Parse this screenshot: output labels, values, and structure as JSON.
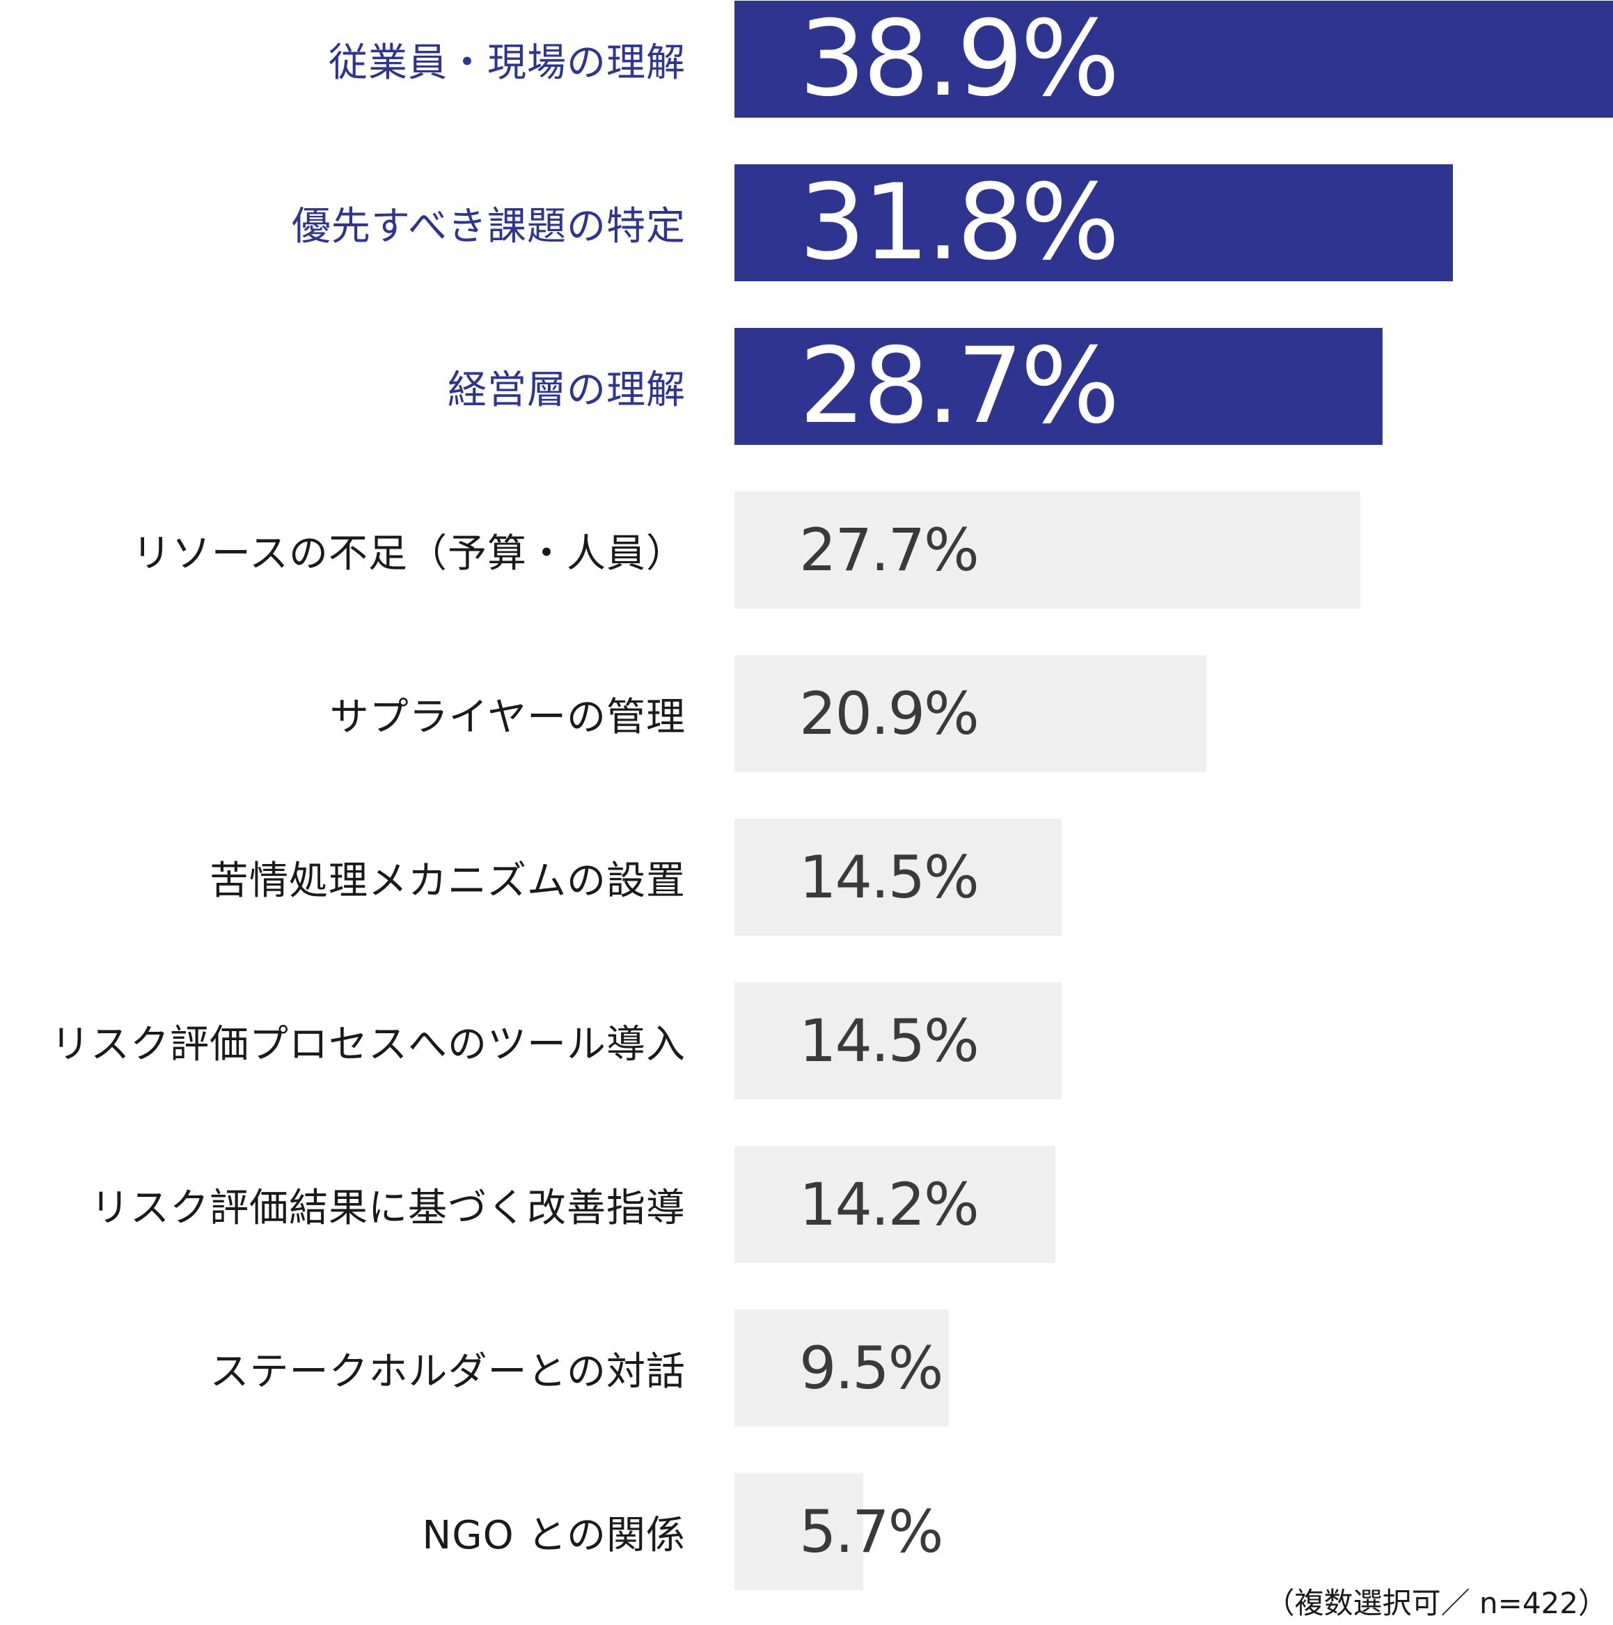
{
  "chart_data": {
    "type": "bar",
    "orientation": "horizontal",
    "categories": [
      "従業員・現場の理解",
      "優先すべき課題の特定",
      "経営層の理解",
      "リソースの不足（予算・人員）",
      "サプライヤーの管理",
      "苦情処理メカニズムの設置",
      "リスク評価プロセスへのツール導入",
      "リスク評価結果に基づく改善指導",
      "ステークホルダーとの対話",
      "NGO との関係"
    ],
    "values": [
      38.9,
      31.8,
      28.7,
      27.7,
      20.9,
      14.5,
      14.5,
      14.2,
      9.5,
      5.7
    ],
    "value_labels": [
      "38.9%",
      "31.8%",
      "28.7%",
      "27.7%",
      "20.9%",
      "14.5%",
      "14.5%",
      "14.2%",
      "9.5%",
      "5.7%"
    ],
    "highlighted": [
      true,
      true,
      true,
      false,
      false,
      false,
      false,
      false,
      false,
      false
    ],
    "unit": "%",
    "xlim": [
      0,
      38.9
    ],
    "grid": false,
    "colors": {
      "highlight_bar": "#2e3590",
      "normal_bar": "#efefef",
      "highlight_label": "#2e3590",
      "normal_label": "#1a1a1a",
      "highlight_value": "#ffffff",
      "normal_value": "#3a3a3a"
    },
    "footnote": "（複数選択可／ n=422）"
  }
}
